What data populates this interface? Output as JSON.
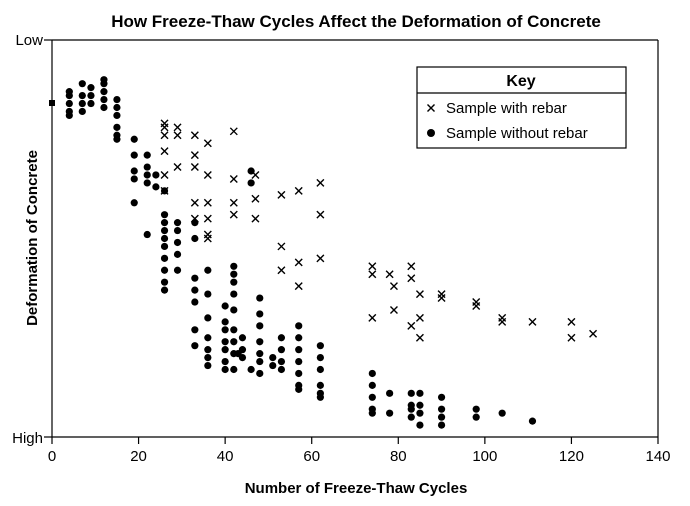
{
  "chart_data": {
    "type": "scatter",
    "title": "How Freeze-Thaw Cycles Affect the Deformation of Concrete",
    "xlabel": "Number of Freeze-Thaw Cycles",
    "ylabel": "Deformation of Concrete",
    "xlim": [
      0,
      140
    ],
    "ylim": [
      0,
      100
    ],
    "x_ticks": [
      0,
      20,
      40,
      60,
      80,
      100,
      120,
      140
    ],
    "y_tick_labels": {
      "top": "Low",
      "bottom": "High"
    },
    "grid": false,
    "legend": {
      "title": "Key",
      "position": "top-right",
      "entries": [
        {
          "marker": "×",
          "label": "Sample with rebar"
        },
        {
          "marker": "●",
          "label": "Sample without rebar"
        }
      ]
    },
    "series": [
      {
        "name": "Sample with rebar",
        "marker": "x",
        "points": [
          [
            26,
            79
          ],
          [
            26,
            78
          ],
          [
            26,
            76
          ],
          [
            29,
            78
          ],
          [
            29,
            76
          ],
          [
            33,
            76
          ],
          [
            36,
            74
          ],
          [
            42,
            77
          ],
          [
            26,
            72
          ],
          [
            33,
            71
          ],
          [
            29,
            68
          ],
          [
            26,
            66
          ],
          [
            33,
            68
          ],
          [
            36,
            66
          ],
          [
            42,
            65
          ],
          [
            47,
            66
          ],
          [
            26,
            62
          ],
          [
            33,
            59
          ],
          [
            36,
            59
          ],
          [
            42,
            59
          ],
          [
            47,
            60
          ],
          [
            53,
            61
          ],
          [
            57,
            62
          ],
          [
            62,
            64
          ],
          [
            33,
            55
          ],
          [
            36,
            55
          ],
          [
            42,
            56
          ],
          [
            47,
            55
          ],
          [
            62,
            56
          ],
          [
            36,
            51
          ],
          [
            36,
            50
          ],
          [
            53,
            48
          ],
          [
            57,
            44
          ],
          [
            62,
            45
          ],
          [
            53,
            42
          ],
          [
            57,
            38
          ],
          [
            74,
            43
          ],
          [
            74,
            41
          ],
          [
            78,
            41
          ],
          [
            83,
            43
          ],
          [
            83,
            40
          ],
          [
            79,
            38
          ],
          [
            85,
            36
          ],
          [
            90,
            36
          ],
          [
            90,
            35
          ],
          [
            98,
            34
          ],
          [
            98,
            33
          ],
          [
            74,
            30
          ],
          [
            79,
            32
          ],
          [
            85,
            30
          ],
          [
            83,
            28
          ],
          [
            85,
            25
          ],
          [
            104,
            30
          ],
          [
            104,
            29
          ],
          [
            111,
            29
          ],
          [
            120,
            29
          ],
          [
            120,
            25
          ],
          [
            125,
            26
          ]
        ]
      },
      {
        "name": "Sample without rebar",
        "marker": "dot",
        "points": [
          [
            4,
            87
          ],
          [
            4,
            86
          ],
          [
            4,
            84
          ],
          [
            4,
            82
          ],
          [
            4,
            81
          ],
          [
            7,
            89
          ],
          [
            7,
            86
          ],
          [
            7,
            84
          ],
          [
            7,
            82
          ],
          [
            9,
            88
          ],
          [
            9,
            86
          ],
          [
            9,
            84
          ],
          [
            12,
            90
          ],
          [
            12,
            89
          ],
          [
            12,
            87
          ],
          [
            12,
            85
          ],
          [
            12,
            83
          ],
          [
            15,
            85
          ],
          [
            15,
            83
          ],
          [
            15,
            81
          ],
          [
            15,
            78
          ],
          [
            15,
            76
          ],
          [
            15,
            75
          ],
          [
            19,
            75
          ],
          [
            19,
            71
          ],
          [
            19,
            67
          ],
          [
            19,
            65
          ],
          [
            19,
            59
          ],
          [
            22,
            71
          ],
          [
            22,
            68
          ],
          [
            22,
            66
          ],
          [
            22,
            64
          ],
          [
            22,
            51
          ],
          [
            24,
            66
          ],
          [
            24,
            63
          ],
          [
            26,
            62
          ],
          [
            26,
            56
          ],
          [
            26,
            54
          ],
          [
            26,
            52
          ],
          [
            26,
            50
          ],
          [
            26,
            48
          ],
          [
            26,
            45
          ],
          [
            26,
            42
          ],
          [
            26,
            39
          ],
          [
            26,
            37
          ],
          [
            29,
            54
          ],
          [
            29,
            52
          ],
          [
            29,
            49
          ],
          [
            29,
            46
          ],
          [
            29,
            42
          ],
          [
            33,
            54
          ],
          [
            33,
            50
          ],
          [
            33,
            40
          ],
          [
            33,
            37
          ],
          [
            36,
            42
          ],
          [
            36,
            36
          ],
          [
            36,
            30
          ],
          [
            36,
            25
          ],
          [
            36,
            22
          ],
          [
            36,
            20
          ],
          [
            36,
            18
          ],
          [
            33,
            34
          ],
          [
            33,
            27
          ],
          [
            33,
            23
          ],
          [
            40,
            33
          ],
          [
            40,
            29
          ],
          [
            40,
            27
          ],
          [
            40,
            24
          ],
          [
            40,
            22
          ],
          [
            40,
            19
          ],
          [
            40,
            17
          ],
          [
            42,
            43
          ],
          [
            42,
            41
          ],
          [
            42,
            39
          ],
          [
            42,
            36
          ],
          [
            42,
            32
          ],
          [
            42,
            27
          ],
          [
            42,
            24
          ],
          [
            42,
            21
          ],
          [
            43,
            21
          ],
          [
            44,
            25
          ],
          [
            44,
            22
          ],
          [
            44,
            20
          ],
          [
            42,
            17
          ],
          [
            46,
            17
          ],
          [
            46,
            67
          ],
          [
            46,
            64
          ],
          [
            48,
            35
          ],
          [
            48,
            31
          ],
          [
            48,
            28
          ],
          [
            48,
            24
          ],
          [
            48,
            21
          ],
          [
            48,
            19
          ],
          [
            48,
            16
          ],
          [
            51,
            20
          ],
          [
            51,
            18
          ],
          [
            53,
            25
          ],
          [
            53,
            22
          ],
          [
            53,
            19
          ],
          [
            53,
            17
          ],
          [
            57,
            28
          ],
          [
            57,
            25
          ],
          [
            57,
            22
          ],
          [
            57,
            19
          ],
          [
            57,
            16
          ],
          [
            57,
            13
          ],
          [
            57,
            12
          ],
          [
            62,
            23
          ],
          [
            62,
            20
          ],
          [
            62,
            17
          ],
          [
            62,
            13
          ],
          [
            62,
            11
          ],
          [
            62,
            10
          ],
          [
            74,
            16
          ],
          [
            74,
            13
          ],
          [
            74,
            10
          ],
          [
            74,
            7
          ],
          [
            74,
            6
          ],
          [
            78,
            11
          ],
          [
            78,
            6
          ],
          [
            83,
            11
          ],
          [
            83,
            8
          ],
          [
            83,
            7
          ],
          [
            83,
            5
          ],
          [
            85,
            11
          ],
          [
            85,
            8
          ],
          [
            85,
            6
          ],
          [
            85,
            3
          ],
          [
            90,
            10
          ],
          [
            90,
            7
          ],
          [
            90,
            5
          ],
          [
            90,
            3
          ],
          [
            98,
            7
          ],
          [
            98,
            5
          ],
          [
            104,
            6
          ],
          [
            111,
            4
          ]
        ]
      }
    ]
  },
  "colors": {
    "marks": "#000000",
    "background": "#ffffff"
  }
}
